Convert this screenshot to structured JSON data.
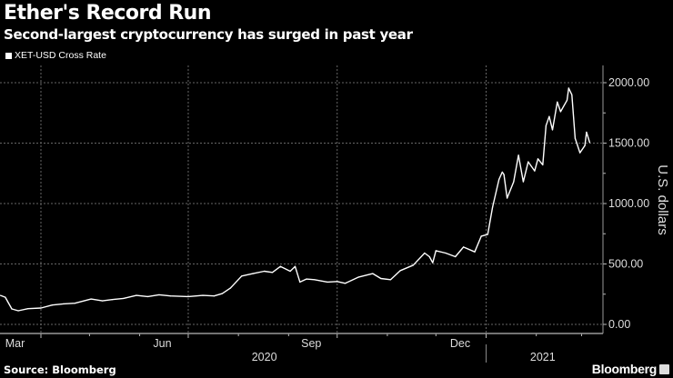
{
  "header": {
    "title": "Ether's Record Run",
    "subtitle": "Second-largest cryptocurrency has surged in past year"
  },
  "footer": {
    "source": "Source: Bloomberg",
    "logo": "Bloomberg"
  },
  "colors": {
    "background": "#000000",
    "line": "#ffffff",
    "grid": "#777777",
    "axis": "#bbbbbb"
  },
  "chart_data": {
    "type": "line",
    "title": "Ether's Record Run",
    "subtitle": "Second-largest cryptocurrency has surged in past year",
    "xlabel": "",
    "ylabel": "U.S. dollars",
    "ylim": [
      0,
      2150
    ],
    "yticks": [
      0,
      500,
      1000,
      1500,
      2000
    ],
    "ytick_labels": [
      "0.00",
      "500.00",
      "1000.00",
      "1500.00",
      "2000.00"
    ],
    "y_axis_side": "right",
    "grid": true,
    "legend_placement": "top-left",
    "xlim": [
      "2020-03-07",
      "2021-03-12"
    ],
    "month_labels": [
      {
        "label": "Mar",
        "date": "2020-03-16"
      },
      {
        "label": "Jun",
        "date": "2020-06-15"
      },
      {
        "label": "Sep",
        "date": "2020-09-15"
      },
      {
        "label": "Dec",
        "date": "2020-12-16"
      }
    ],
    "year_labels": [
      {
        "label": "2020",
        "date": "2020-08-17"
      },
      {
        "label": "2021",
        "date": "2021-02-05"
      }
    ],
    "series": [
      {
        "name": "XET-USD Cross Rate",
        "x": [
          "2020-03-07",
          "2020-03-10",
          "2020-03-14",
          "2020-03-18",
          "2020-03-24",
          "2020-04-01",
          "2020-04-08",
          "2020-04-15",
          "2020-04-22",
          "2020-05-02",
          "2020-05-09",
          "2020-05-15",
          "2020-05-22",
          "2020-05-30",
          "2020-06-06",
          "2020-06-13",
          "2020-06-20",
          "2020-07-01",
          "2020-07-10",
          "2020-07-17",
          "2020-07-22",
          "2020-07-27",
          "2020-08-03",
          "2020-08-10",
          "2020-08-17",
          "2020-08-22",
          "2020-08-27",
          "2020-09-02",
          "2020-09-05",
          "2020-09-08",
          "2020-09-12",
          "2020-09-17",
          "2020-09-25",
          "2020-10-01",
          "2020-10-06",
          "2020-10-14",
          "2020-10-23",
          "2020-10-28",
          "2020-11-03",
          "2020-11-09",
          "2020-11-17",
          "2020-11-24",
          "2020-11-27",
          "2020-11-29",
          "2020-12-01",
          "2020-12-07",
          "2020-12-13",
          "2020-12-18",
          "2020-12-25",
          "2020-12-29",
          "2021-01-02",
          "2021-01-05",
          "2021-01-09",
          "2021-01-11",
          "2021-01-12",
          "2021-01-14",
          "2021-01-18",
          "2021-01-21",
          "2021-01-24",
          "2021-01-27",
          "2021-01-31",
          "2021-02-02",
          "2021-02-05",
          "2021-02-07",
          "2021-02-09",
          "2021-02-11",
          "2021-02-14",
          "2021-02-16",
          "2021-02-20",
          "2021-02-21",
          "2021-02-23",
          "2021-02-25",
          "2021-02-28",
          "2021-03-03",
          "2021-03-04",
          "2021-03-06"
        ],
        "values": [
          240,
          225,
          128,
          113,
          130,
          135,
          160,
          170,
          175,
          210,
          195,
          205,
          215,
          240,
          230,
          245,
          235,
          230,
          240,
          235,
          255,
          300,
          400,
          420,
          440,
          430,
          480,
          440,
          480,
          350,
          375,
          370,
          350,
          355,
          340,
          390,
          420,
          380,
          370,
          445,
          490,
          590,
          560,
          510,
          610,
          590,
          560,
          640,
          600,
          730,
          745,
          970,
          1200,
          1260,
          1240,
          1045,
          1180,
          1400,
          1180,
          1345,
          1270,
          1370,
          1320,
          1645,
          1720,
          1610,
          1840,
          1760,
          1855,
          1955,
          1900,
          1540,
          1420,
          1480,
          1590,
          1505
        ]
      }
    ]
  }
}
